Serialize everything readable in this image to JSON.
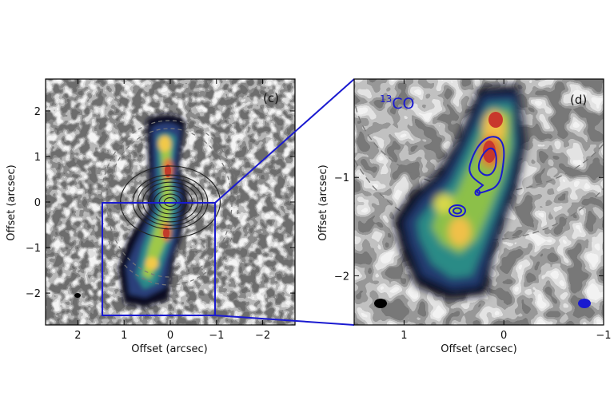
{
  "colors": {
    "zoom_box": "#1a1ad0",
    "contour_blue": "#1a1ad0",
    "contour_black": "#222222",
    "dashed": "#777777"
  },
  "chart_data": [
    {
      "type": "heatmap",
      "panel_label": "(c)",
      "xlabel": "Offset (arcsec)",
      "ylabel": "Offset (arcsec)",
      "xlim": [
        2.7,
        -2.7
      ],
      "ylim": [
        -2.7,
        2.7
      ],
      "x_ticks": [
        "2",
        "1",
        "0",
        "−1",
        "−2"
      ],
      "x_tick_values": [
        2,
        1,
        0,
        -1,
        -2
      ],
      "y_ticks": [
        "2",
        "1",
        "0",
        "−1",
        "−2"
      ],
      "y_tick_values": [
        2,
        1,
        0,
        -1,
        -2
      ],
      "zoom_box": {
        "x": [
          1.5,
          -1.0
        ],
        "y": [
          -2.5,
          0.0
        ]
      },
      "dashed_ellipses": [
        {
          "a": 1.4,
          "b": 1.7
        },
        {
          "a": 1.55,
          "b": 1.85
        }
      ],
      "continuum_contour_radii": [
        0.12,
        0.22,
        0.33,
        0.44,
        0.55,
        0.65,
        0.75,
        1.0
      ],
      "beam": {
        "x": 2.1,
        "y": -2.25
      }
    },
    {
      "type": "heatmap",
      "panel_label": "(d)",
      "species": "13",
      "species_rest": "CO",
      "xlabel": "Offset (arcsec)",
      "ylabel": "Offset (arcsec)",
      "xlim": [
        1.5,
        -1.0
      ],
      "ylim": [
        -2.5,
        0.0
      ],
      "x_ticks": [
        "1",
        "0",
        "−1"
      ],
      "x_tick_values": [
        1,
        0,
        -1
      ],
      "y_ticks": [
        "−1",
        "−2"
      ],
      "y_tick_values": [
        -1,
        -2
      ],
      "beams": [
        {
          "x": 1.27,
          "y": -2.27,
          "color": "black"
        },
        {
          "x": -0.8,
          "y": -2.27,
          "color": "blue"
        }
      ]
    }
  ]
}
